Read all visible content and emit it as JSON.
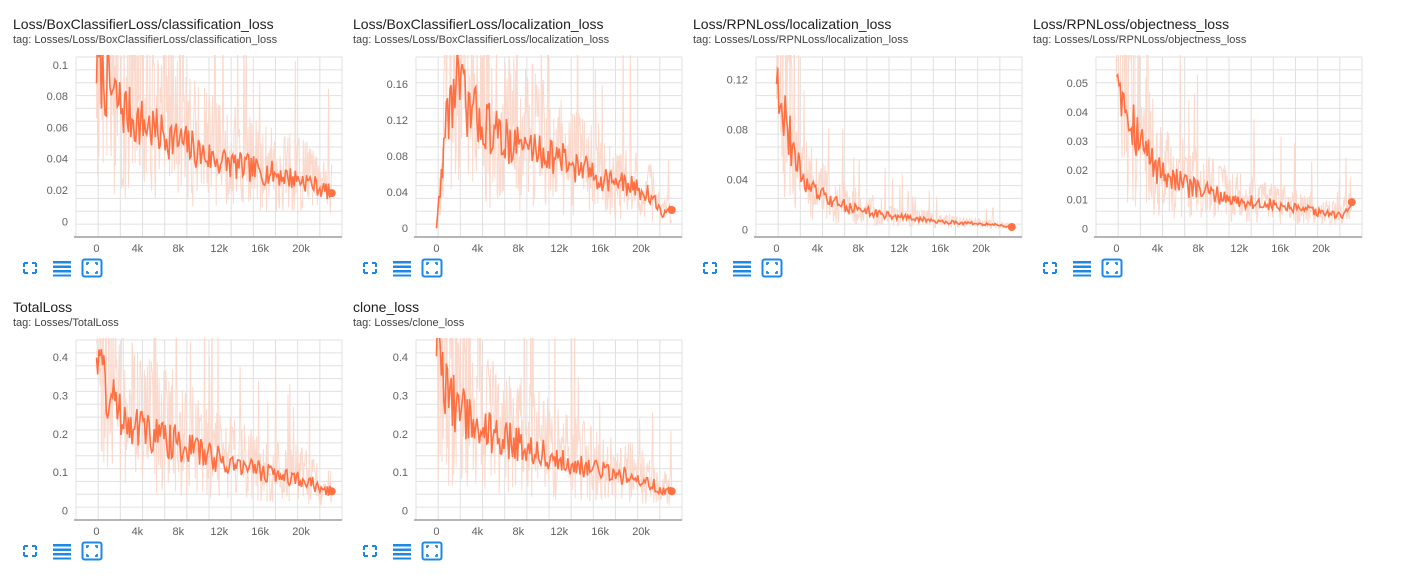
{
  "colors": {
    "series": "#ff7043",
    "band": "#fbd5c8",
    "grid": "#e0e0e0",
    "axis": "#9e9e9e",
    "icon": "#1e88e5"
  },
  "controls": {
    "expand_icon": "fullscreen-icon",
    "log_toggle_icon": "lines-icon",
    "fit_domain_icon": "fit-domain-icon"
  },
  "charts": [
    {
      "title": "Loss/BoxClassifierLoss/classification_loss",
      "tag": "tag: Losses/Loss/BoxClassifierLoss/classification_loss"
    },
    {
      "title": "Loss/BoxClassifierLoss/localization_loss",
      "tag": "tag: Losses/Loss/BoxClassifierLoss/localization_loss"
    },
    {
      "title": "Loss/RPNLoss/localization_loss",
      "tag": "tag: Losses/Loss/RPNLoss/localization_loss"
    },
    {
      "title": "Loss/RPNLoss/objectness_loss",
      "tag": "tag: Losses/Loss/RPNLoss/objectness_loss"
    },
    {
      "title": "TotalLoss",
      "tag": "tag: Losses/TotalLoss"
    },
    {
      "title": "clone_loss",
      "tag": "tag: Losses/clone_loss"
    }
  ],
  "chart_data": [
    {
      "type": "line",
      "title": "Loss/BoxClassifierLoss/classification_loss",
      "xlim": [
        -2000,
        24000
      ],
      "ylim": [
        -0.01,
        0.105
      ],
      "xticks": [
        0,
        4000,
        8000,
        12000,
        16000,
        20000
      ],
      "xtick_labels": [
        "0",
        "4k",
        "8k",
        "12k",
        "16k",
        "20k"
      ],
      "yticks": [
        0,
        0.02,
        0.04,
        0.06,
        0.08,
        0.1
      ],
      "ytick_labels": [
        "0",
        "0.02",
        "0.04",
        "0.06",
        "0.08",
        "0.1"
      ],
      "grid": true,
      "series": [
        {
          "x": [
            0,
            1000,
            2000,
            3000,
            4000,
            5000,
            6000,
            7000,
            8000,
            9000,
            10000,
            11000,
            12000,
            13000,
            14000,
            15000,
            16000,
            17000,
            18000,
            19000,
            20000,
            21000,
            22000,
            23000
          ],
          "y": [
            0.1,
            0.085,
            0.075,
            0.068,
            0.062,
            0.06,
            0.055,
            0.053,
            0.05,
            0.047,
            0.043,
            0.04,
            0.038,
            0.036,
            0.034,
            0.033,
            0.031,
            0.03,
            0.029,
            0.027,
            0.026,
            0.024,
            0.02,
            0.018
          ]
        }
      ]
    },
    {
      "type": "line",
      "title": "Loss/BoxClassifierLoss/localization_loss",
      "xlim": [
        -2000,
        24000
      ],
      "ylim": [
        -0.01,
        0.19
      ],
      "xticks": [
        0,
        4000,
        8000,
        12000,
        16000,
        20000
      ],
      "xtick_labels": [
        "0",
        "4k",
        "8k",
        "12k",
        "16k",
        "20k"
      ],
      "yticks": [
        0,
        0.04,
        0.08,
        0.12,
        0.16
      ],
      "ytick_labels": [
        "0",
        "0.04",
        "0.08",
        "0.12",
        "0.16"
      ],
      "grid": true,
      "series": [
        {
          "x": [
            0,
            1000,
            2000,
            3000,
            4000,
            5000,
            6000,
            7000,
            8000,
            9000,
            10000,
            11000,
            12000,
            13000,
            14000,
            15000,
            16000,
            17000,
            18000,
            19000,
            20000,
            21000,
            22000,
            23000
          ],
          "y": [
            0.0,
            0.12,
            0.16,
            0.13,
            0.12,
            0.11,
            0.1,
            0.095,
            0.09,
            0.088,
            0.085,
            0.08,
            0.075,
            0.07,
            0.065,
            0.06,
            0.055,
            0.052,
            0.048,
            0.045,
            0.04,
            0.035,
            0.015,
            0.02
          ]
        }
      ]
    },
    {
      "type": "line",
      "title": "Loss/RPNLoss/localization_loss",
      "xlim": [
        -2000,
        24000
      ],
      "ylim": [
        -0.006,
        0.138
      ],
      "xticks": [
        0,
        4000,
        8000,
        12000,
        16000,
        20000
      ],
      "xtick_labels": [
        "0",
        "4k",
        "8k",
        "12k",
        "16k",
        "20k"
      ],
      "yticks": [
        0,
        0.04,
        0.08,
        0.12
      ],
      "ytick_labels": [
        "0",
        "0.04",
        "0.08",
        "0.12"
      ],
      "grid": true,
      "series": [
        {
          "x": [
            0,
            1000,
            2000,
            3000,
            4000,
            5000,
            6000,
            7000,
            8000,
            9000,
            10000,
            11000,
            12000,
            13000,
            14000,
            15000,
            16000,
            17000,
            18000,
            19000,
            20000,
            21000,
            22000,
            23000
          ],
          "y": [
            0.13,
            0.08,
            0.05,
            0.035,
            0.028,
            0.024,
            0.02,
            0.018,
            0.016,
            0.014,
            0.012,
            0.011,
            0.01,
            0.009,
            0.008,
            0.007,
            0.006,
            0.006,
            0.005,
            0.005,
            0.004,
            0.004,
            0.003,
            0.002
          ]
        }
      ]
    },
    {
      "type": "line",
      "title": "Loss/RPNLoss/objectness_loss",
      "xlim": [
        -2000,
        24000
      ],
      "ylim": [
        -0.003,
        0.059
      ],
      "xticks": [
        0,
        4000,
        8000,
        12000,
        16000,
        20000
      ],
      "xtick_labels": [
        "0",
        "4k",
        "8k",
        "12k",
        "16k",
        "20k"
      ],
      "yticks": [
        0,
        0.01,
        0.02,
        0.03,
        0.04,
        0.05
      ],
      "ytick_labels": [
        "0",
        "0.01",
        "0.02",
        "0.03",
        "0.04",
        "0.05"
      ],
      "grid": true,
      "series": [
        {
          "x": [
            0,
            1000,
            2000,
            3000,
            4000,
            5000,
            6000,
            7000,
            8000,
            9000,
            10000,
            11000,
            12000,
            13000,
            14000,
            15000,
            16000,
            17000,
            18000,
            19000,
            20000,
            21000,
            22000,
            23000
          ],
          "y": [
            0.058,
            0.042,
            0.032,
            0.025,
            0.02,
            0.018,
            0.016,
            0.014,
            0.013,
            0.012,
            0.011,
            0.01,
            0.009,
            0.009,
            0.008,
            0.008,
            0.007,
            0.007,
            0.006,
            0.006,
            0.005,
            0.005,
            0.004,
            0.009
          ]
        }
      ]
    },
    {
      "type": "line",
      "title": "TotalLoss",
      "xlim": [
        -2000,
        24000
      ],
      "ylim": [
        -0.025,
        0.445
      ],
      "xticks": [
        0,
        4000,
        8000,
        12000,
        16000,
        20000
      ],
      "xtick_labels": [
        "0",
        "4k",
        "8k",
        "12k",
        "16k",
        "20k"
      ],
      "yticks": [
        0,
        0.1,
        0.2,
        0.3,
        0.4
      ],
      "ytick_labels": [
        "0",
        "0.1",
        "0.2",
        "0.3",
        "0.4"
      ],
      "grid": true,
      "series": [
        {
          "x": [
            0,
            1000,
            2000,
            3000,
            4000,
            5000,
            6000,
            7000,
            8000,
            9000,
            10000,
            11000,
            12000,
            13000,
            14000,
            15000,
            16000,
            17000,
            18000,
            19000,
            20000,
            21000,
            22000,
            23000
          ],
          "y": [
            0.44,
            0.3,
            0.26,
            0.24,
            0.22,
            0.2,
            0.19,
            0.18,
            0.17,
            0.16,
            0.15,
            0.14,
            0.13,
            0.12,
            0.115,
            0.11,
            0.1,
            0.095,
            0.09,
            0.085,
            0.08,
            0.07,
            0.05,
            0.05
          ]
        }
      ]
    },
    {
      "type": "line",
      "title": "clone_loss",
      "xlim": [
        -2000,
        24000
      ],
      "ylim": [
        -0.025,
        0.445
      ],
      "xticks": [
        0,
        4000,
        8000,
        12000,
        16000,
        20000
      ],
      "xtick_labels": [
        "0",
        "4k",
        "8k",
        "12k",
        "16k",
        "20k"
      ],
      "yticks": [
        0,
        0.1,
        0.2,
        0.3,
        0.4
      ],
      "ytick_labels": [
        "0",
        "0.1",
        "0.2",
        "0.3",
        "0.4"
      ],
      "grid": true,
      "series": [
        {
          "x": [
            0,
            1000,
            2000,
            3000,
            4000,
            5000,
            6000,
            7000,
            8000,
            9000,
            10000,
            11000,
            12000,
            13000,
            14000,
            15000,
            16000,
            17000,
            18000,
            19000,
            20000,
            21000,
            22000,
            23000
          ],
          "y": [
            0.44,
            0.3,
            0.26,
            0.24,
            0.22,
            0.2,
            0.19,
            0.18,
            0.17,
            0.16,
            0.15,
            0.14,
            0.13,
            0.12,
            0.115,
            0.11,
            0.1,
            0.095,
            0.09,
            0.085,
            0.08,
            0.07,
            0.05,
            0.05
          ]
        }
      ]
    }
  ]
}
